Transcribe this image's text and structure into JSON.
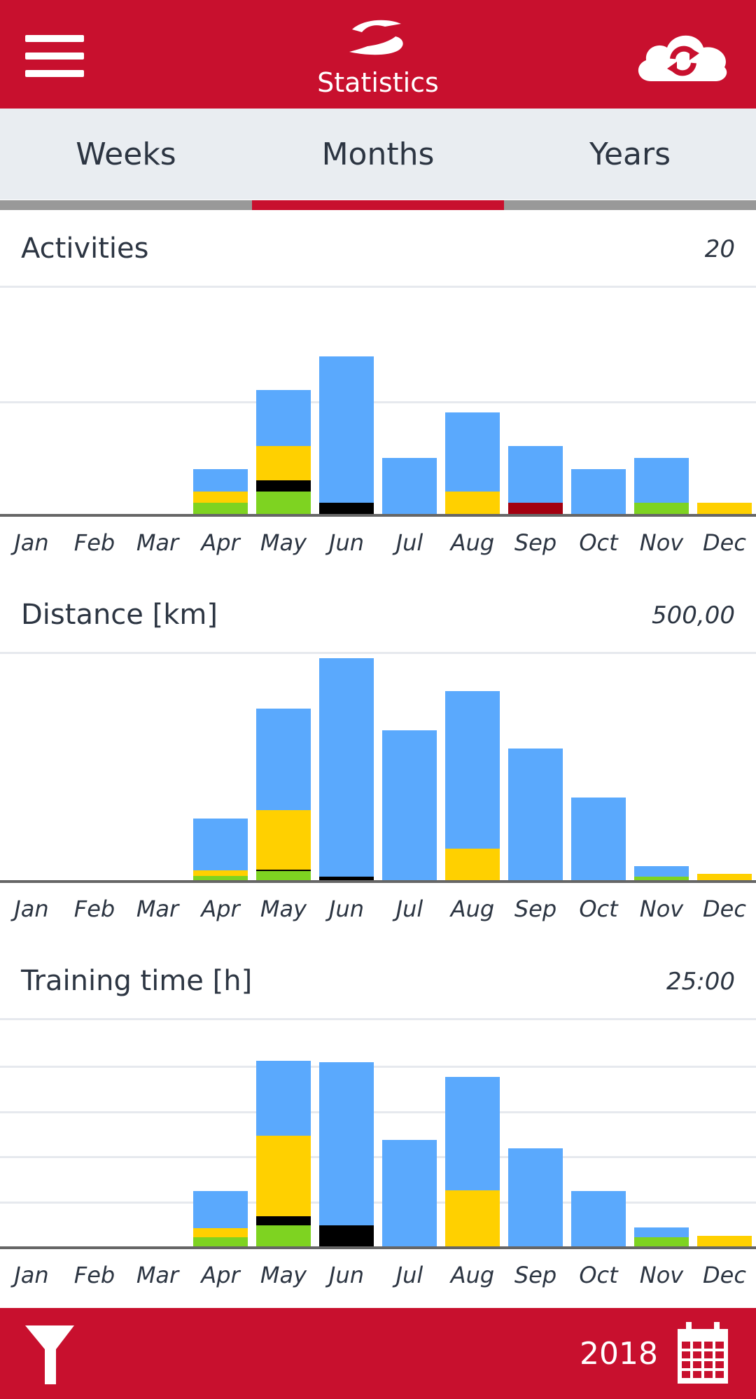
{
  "header": {
    "title": "Statistics"
  },
  "tabs": [
    {
      "label": "Weeks",
      "active": false
    },
    {
      "label": "Months",
      "active": true
    },
    {
      "label": "Years",
      "active": false
    }
  ],
  "colors": {
    "brand": "#c8102e",
    "blue": "#5aa9fd",
    "yellow": "#ffd000",
    "green": "#7ed321",
    "black": "#000000",
    "darkred": "#a30010",
    "tab_inactive_line": "#999999"
  },
  "footer": {
    "year": "2018"
  },
  "icons": {
    "menu": "hamburger-icon",
    "logo": "app-logo-icon",
    "sync": "cloud-sync-icon",
    "filter": "filter-icon",
    "calendar": "calendar-icon"
  },
  "chart_data": [
    {
      "type": "bar",
      "title": "Activities",
      "max_label": "20",
      "ylim": [
        0,
        20
      ],
      "grid_values": [
        10
      ],
      "categories": [
        "Jan",
        "Feb",
        "Mar",
        "Apr",
        "May",
        "Jun",
        "Jul",
        "Aug",
        "Sep",
        "Oct",
        "Nov",
        "Dec"
      ],
      "series": [
        {
          "color": "green",
          "values": [
            0,
            0,
            0,
            1,
            2,
            0,
            0,
            0,
            0,
            0,
            1,
            0
          ]
        },
        {
          "color": "black",
          "values": [
            0,
            0,
            0,
            0,
            1,
            1,
            0,
            0,
            0,
            0,
            0,
            0
          ]
        },
        {
          "color": "darkred",
          "values": [
            0,
            0,
            0,
            0,
            0,
            0,
            0,
            0,
            1,
            0,
            0,
            0
          ]
        },
        {
          "color": "yellow",
          "values": [
            0,
            0,
            0,
            1,
            3,
            0,
            0,
            2,
            0,
            0,
            0,
            1
          ]
        },
        {
          "color": "blue",
          "values": [
            0,
            0,
            0,
            2,
            5,
            13,
            5,
            7,
            5,
            4,
            4,
            0
          ]
        }
      ]
    },
    {
      "type": "bar",
      "title": "Distance [km]",
      "max_label": "500,00",
      "ylim": [
        0,
        500
      ],
      "grid_values": [],
      "categories": [
        "Jan",
        "Feb",
        "Mar",
        "Apr",
        "May",
        "Jun",
        "Jul",
        "Aug",
        "Sep",
        "Oct",
        "Nov",
        "Dec"
      ],
      "series": [
        {
          "color": "green",
          "values": [
            0,
            0,
            0,
            10,
            20,
            0,
            0,
            0,
            0,
            0,
            7,
            0
          ]
        },
        {
          "color": "black",
          "values": [
            0,
            0,
            0,
            0,
            4,
            8,
            0,
            0,
            0,
            0,
            0,
            0
          ]
        },
        {
          "color": "yellow",
          "values": [
            0,
            0,
            0,
            12,
            132,
            0,
            0,
            70,
            0,
            0,
            0,
            14
          ]
        },
        {
          "color": "blue",
          "values": [
            0,
            0,
            0,
            115,
            225,
            485,
            333,
            350,
            292,
            183,
            24,
            0
          ]
        }
      ]
    },
    {
      "type": "bar",
      "title": "Training time [h]",
      "max_label": "25:00",
      "ylim": [
        0,
        25
      ],
      "grid_values": [
        5,
        10,
        15,
        20
      ],
      "categories": [
        "Jan",
        "Feb",
        "Mar",
        "Apr",
        "May",
        "Jun",
        "Jul",
        "Aug",
        "Sep",
        "Oct",
        "Nov",
        "Dec"
      ],
      "series": [
        {
          "color": "green",
          "values": [
            0,
            0,
            0,
            1,
            2.3,
            0,
            0,
            0,
            0,
            0,
            1,
            0
          ]
        },
        {
          "color": "black",
          "values": [
            0,
            0,
            0,
            0,
            1,
            2.3,
            0,
            0,
            0,
            0,
            0,
            0
          ]
        },
        {
          "color": "yellow",
          "values": [
            0,
            0,
            0,
            1,
            9,
            0,
            0,
            6.2,
            0,
            0,
            0,
            1.2
          ]
        },
        {
          "color": "blue",
          "values": [
            0,
            0,
            0,
            4.1,
            8.3,
            18.1,
            11.8,
            12.6,
            10.9,
            6.1,
            1.1,
            0
          ]
        }
      ]
    }
  ]
}
